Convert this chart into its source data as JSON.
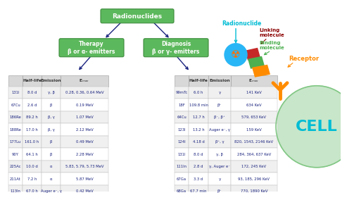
{
  "title_box": "Radionuclides",
  "therapy_box": "Therapy\nβ or α- emitters",
  "diagnosis_box": "Diagnosis\nβ or γ- emitters",
  "therapy_table": {
    "headers": [
      "",
      "Half-life",
      "Emission",
      "E_max"
    ],
    "rows": [
      [
        "131I",
        "8.0 d",
        "γ, β",
        "0.28, 0.36, 0.64 MeV"
      ],
      [
        "67Cu",
        "2.6 d",
        "β",
        "0.19 MeV"
      ],
      [
        "186Re",
        "89.2 h",
        "β, γ",
        "1.07 MeV"
      ],
      [
        "188Re",
        "17.0 h",
        "β, γ",
        "2.12 MeV"
      ],
      [
        "177Lu",
        "161.0 h",
        "β",
        "0.49 MeV"
      ],
      [
        "90Y",
        "64.1 h",
        "β",
        "2.28 MeV"
      ],
      [
        "225Ac",
        "10.0 d",
        "α",
        "5.83, 5.79, 5.73 MeV"
      ],
      [
        "211At",
        "7.2 h",
        "α",
        "5.87 MeV"
      ],
      [
        "113In",
        "67.0 h",
        "Auger e⁻, γ",
        "0.42 MeV"
      ]
    ]
  },
  "diagnosis_table": {
    "headers": [
      "",
      "Half-life",
      "Emission",
      "E_max"
    ],
    "rows": [
      [
        "99mTc",
        "6.0 h",
        "γ",
        "141 KeV"
      ],
      [
        "18F",
        "109.8 min",
        "β⁺",
        "634 KeV"
      ],
      [
        "64Cu",
        "12.7 h",
        "β⁻, β⁺",
        "579, 653 KeV"
      ],
      [
        "123I",
        "13.2 h",
        "Auger e⁻, γ",
        "159 KeV"
      ],
      [
        "124I",
        "4.18 d",
        "β⁺, γ",
        "820, 1543, 2146 KeV"
      ],
      [
        "131I",
        "8.0 d",
        "γ, β",
        "284, 364, 637 KeV"
      ],
      [
        "111In",
        "2.8 d",
        "γ, Auger e⁻",
        "172, 245 KeV"
      ],
      [
        "67Ga",
        "3.3 d",
        "γ",
        "93, 185, 296 KeV"
      ],
      [
        "68Ga",
        "67.7 min",
        "β⁺",
        "770, 1890 KeV"
      ]
    ]
  },
  "radionuclide_label": "Radionuclide",
  "linking_label": "Linking\nmolecule",
  "binding_label": "Binding\nmolecule",
  "receptor_label": "Receptor",
  "cell_label": "CELL",
  "green_box_color": "#5cb85c",
  "green_border_color": "#3d8b3d",
  "arrow_color": "#1a237e",
  "radionuclide_color": "#00bcd4",
  "linking_color": "#8b0000",
  "binding_color": "#4caf50",
  "receptor_color": "#ff8c00",
  "cell_color": "#00bcd4",
  "cell_bg": "#c8e6c9",
  "cell_border": "#81c784",
  "table_header_bg": "#d8d8d8",
  "table_alt_bg": "#f0f0f0",
  "table_text_color": "#1a237e",
  "sphere_color": "#29b6f6",
  "radiation_color": "#ff6f00",
  "red_block_color": "#c62828",
  "green_block_color": "#4caf50",
  "orange_block_color": "#ff8c00"
}
